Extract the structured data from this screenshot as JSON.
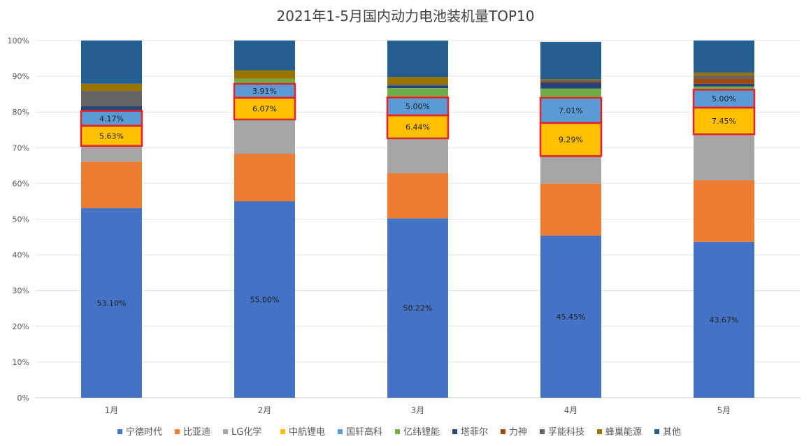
{
  "chart_data": {
    "type": "bar",
    "stacked": true,
    "normalized": true,
    "title": "2021年1-5月国内动力电池装机量TOP10",
    "xlabel": "",
    "ylabel": "",
    "ylim": [
      0,
      100
    ],
    "yticks": [
      "0%",
      "10%",
      "20%",
      "30%",
      "40%",
      "50%",
      "60%",
      "70%",
      "80%",
      "90%",
      "100%"
    ],
    "categories": [
      "1月",
      "2月",
      "3月",
      "4月",
      "5月"
    ],
    "legend_position": "bottom",
    "grid": true,
    "series": [
      {
        "name": "宁德时代",
        "color": "#4472C4",
        "values": [
          53.1,
          55.0,
          50.22,
          45.45,
          43.67
        ],
        "labels": [
          "53.10%",
          "55.00%",
          "50.22%",
          "45.45%",
          "43.67%"
        ]
      },
      {
        "name": "比亚迪",
        "color": "#ED7D31",
        "values": [
          13.0,
          13.3,
          12.6,
          14.5,
          17.2
        ],
        "labels": [
          "",
          "",
          "",
          "",
          ""
        ]
      },
      {
        "name": "LG化学",
        "color": "#A5A5A5",
        "values": [
          4.4,
          9.6,
          9.8,
          7.7,
          12.9
        ],
        "labels": [
          "",
          "",
          "",
          "",
          ""
        ]
      },
      {
        "name": "中航锂电",
        "color": "#FFC000",
        "values": [
          5.63,
          6.07,
          6.44,
          9.29,
          7.45
        ],
        "labels": [
          "5.63%",
          "6.07%",
          "6.44%",
          "9.29%",
          "7.45%"
        ]
      },
      {
        "name": "国轩高科",
        "color": "#5B9BD5",
        "values": [
          4.17,
          3.91,
          5.0,
          7.01,
          5.0
        ],
        "labels": [
          "4.17%",
          "3.91%",
          "5.00%",
          "7.01%",
          "5.00%"
        ]
      },
      {
        "name": "亿纬锂能",
        "color": "#70AD47",
        "values": [
          0.0,
          1.4,
          2.6,
          2.6,
          0.9
        ],
        "labels": [
          "",
          "",
          "",
          "",
          ""
        ]
      },
      {
        "name": "塔菲尔",
        "color": "#264478",
        "values": [
          1.3,
          0.0,
          0.7,
          1.7,
          0.8
        ],
        "labels": [
          "",
          "",
          "",
          "",
          ""
        ]
      },
      {
        "name": "力神",
        "color": "#9E480E",
        "values": [
          0.0,
          0.0,
          0.0,
          0.3,
          1.4
        ],
        "labels": [
          "",
          "",
          "",
          "",
          ""
        ]
      },
      {
        "name": "孚能科技",
        "color": "#636363",
        "values": [
          4.3,
          0.0,
          0.4,
          0.3,
          0.8
        ],
        "labels": [
          "",
          "",
          "",
          "",
          ""
        ]
      },
      {
        "name": "蜂巢能源",
        "color": "#997300",
        "values": [
          2.0,
          2.4,
          2.0,
          0.3,
          0.9
        ],
        "labels": [
          "",
          "",
          "",
          "",
          ""
        ]
      },
      {
        "name": "其他",
        "color": "#255E91",
        "values": [
          12.1,
          8.32,
          10.22,
          10.48,
          8.98
        ],
        "labels": [
          "",
          "",
          "",
          "",
          ""
        ]
      }
    ],
    "highlight_box_color": "#E8202A",
    "highlighted_series": [
      "中航锂电",
      "国轩高科"
    ]
  }
}
